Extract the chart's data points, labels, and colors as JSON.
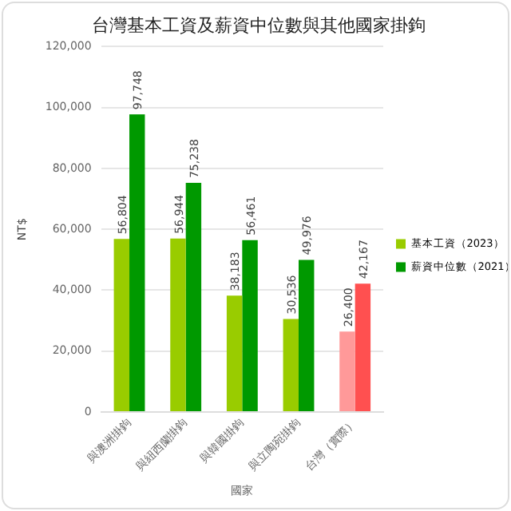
{
  "chart_data": {
    "type": "bar",
    "title": "台灣基本工資及薪資中位數與其他國家掛鉤",
    "xlabel": "國家",
    "ylabel": "NT$",
    "categories": [
      "與澳洲掛鉤",
      "與紐西蘭掛鉤",
      "與韓國掛鉤",
      "與立陶宛掛鉤",
      "台灣（實際）"
    ],
    "series": [
      {
        "name": "基本工資（2023）",
        "color": "#99cc00",
        "colors": [
          "#99cc00",
          "#99cc00",
          "#99cc00",
          "#99cc00",
          "#ff9999"
        ],
        "values": [
          56804,
          56944,
          38183,
          30536,
          26400
        ],
        "value_labels": [
          "56,804",
          "56,944",
          "38,183",
          "30,536",
          "26,400"
        ]
      },
      {
        "name": "薪資中位數（2021）",
        "color": "#009900",
        "colors": [
          "#009900",
          "#009900",
          "#009900",
          "#009900",
          "#ff5050"
        ],
        "values": [
          97748,
          75238,
          56461,
          49976,
          42167
        ],
        "value_labels": [
          "97,748",
          "75,238",
          "56,461",
          "49,976",
          "42,167"
        ]
      }
    ],
    "ylim": [
      0,
      120000
    ],
    "yticks": [
      0,
      {
        "value": 20000,
        "label": "20,000"
      },
      {
        "value": 40000,
        "label": "40,000"
      },
      {
        "value": 60000,
        "label": "60,000"
      },
      {
        "value": 80000,
        "label": "80,000"
      },
      {
        "value": 100000,
        "label": "100,000"
      },
      {
        "value": 120000,
        "label": "120,000"
      }
    ],
    "grid": "y",
    "legend": "right"
  }
}
